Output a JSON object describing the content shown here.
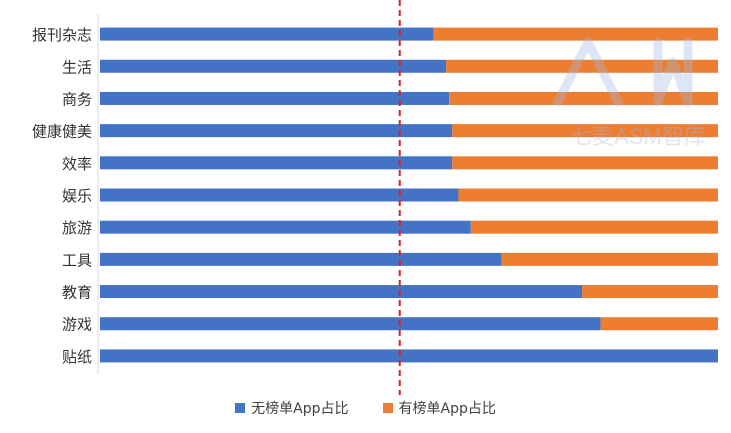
{
  "chart_data": {
    "type": "bar",
    "orientation": "horizontal",
    "stacked": "percent",
    "categories": [
      "报刊杂志",
      "生活",
      "商务",
      "健康健美",
      "效率",
      "娱乐",
      "旅游",
      "工具",
      "教育",
      "游戏",
      "贴纸"
    ],
    "series": [
      {
        "name": "无榜单App占比",
        "color": "#4472C4",
        "values": [
          54,
          56,
          56.5,
          57,
          57,
          58,
          60,
          65,
          78,
          81,
          100
        ]
      },
      {
        "name": "有榜单App占比",
        "color": "#ED7D31",
        "values": [
          46,
          44,
          43.5,
          43,
          43,
          42,
          40,
          35,
          22,
          19,
          0
        ]
      }
    ],
    "xlim": [
      0,
      100
    ],
    "reference_line": {
      "x": 48.5,
      "color": "#E02020",
      "style": "dashed"
    },
    "grid": false,
    "legend_position": "bottom"
  },
  "watermark": {
    "text": "七麦ASM智库",
    "color": "#9DB9E8"
  }
}
